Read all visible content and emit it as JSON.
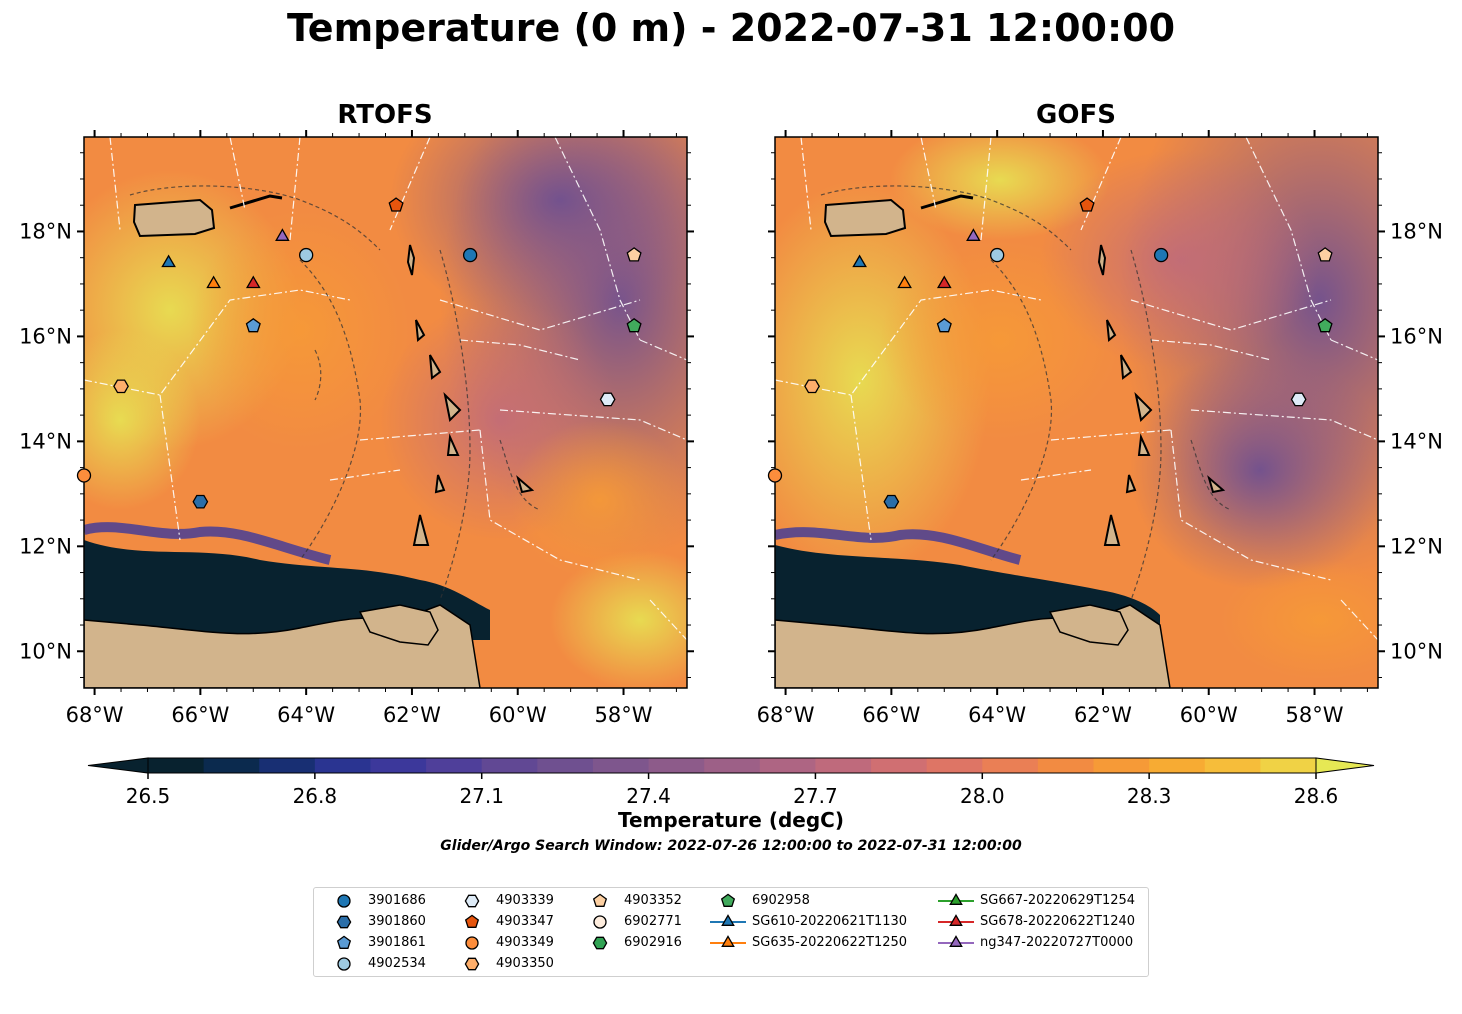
{
  "title": "Temperature (0 m) - 2022-07-31 12:00:00",
  "panels": [
    {
      "title": "RTOFS"
    },
    {
      "title": "GOFS"
    }
  ],
  "axes": {
    "lon_ticks": [
      "68°W",
      "66°W",
      "64°W",
      "62°W",
      "60°W",
      "58°W"
    ],
    "lat_ticks": [
      "18°N",
      "16°N",
      "14°N",
      "12°N",
      "10°N"
    ],
    "lon_range": [
      -68.2,
      -56.8
    ],
    "lat_range": [
      9.3,
      19.8
    ]
  },
  "colorbar": {
    "label": "Temperature (degC)",
    "ticks": [
      "26.5",
      "26.8",
      "27.1",
      "27.4",
      "27.7",
      "28.0",
      "28.3",
      "28.6"
    ],
    "range": [
      26.5,
      28.6
    ],
    "extend": "both",
    "colors": [
      "#08222f",
      "#0b2a4e",
      "#182f73",
      "#2a3491",
      "#3c389b",
      "#4f3f9a",
      "#614894",
      "#6f5090",
      "#7e568d",
      "#8d5b8a",
      "#9d6087",
      "#ae6583",
      "#bf6a7c",
      "#d06f72",
      "#de7565",
      "#ea7f55",
      "#f28b42",
      "#f69a37",
      "#f7ab33",
      "#f6bd3a",
      "#f0d245",
      "#e6e854"
    ]
  },
  "search_window": "Glider/Argo Search Window: 2022-07-26 12:00:00 to 2022-07-31 12:00:00",
  "legend": [
    {
      "label": "3901686",
      "marker": "circle",
      "color": "#1f77b4"
    },
    {
      "label": "3901860",
      "marker": "hexagon",
      "color": "#2b6ea8"
    },
    {
      "label": "3901861",
      "marker": "pentagon",
      "color": "#5a9bd4"
    },
    {
      "label": "4902534",
      "marker": "circle",
      "color": "#9ecae1"
    },
    {
      "label": "4903339",
      "marker": "hexagon",
      "color": "#deebf7"
    },
    {
      "label": "4903347",
      "marker": "pentagon",
      "color": "#e6550d"
    },
    {
      "label": "4903349",
      "marker": "circle",
      "color": "#fd8d3c"
    },
    {
      "label": "4903350",
      "marker": "hexagon",
      "color": "#fdae6b"
    },
    {
      "label": "4903352",
      "marker": "pentagon",
      "color": "#fdd0a2"
    },
    {
      "label": "6902771",
      "marker": "circle",
      "color": "#feedde"
    },
    {
      "label": "6902916",
      "marker": "hexagon",
      "color": "#31a354"
    },
    {
      "label": "6902958",
      "marker": "pentagon",
      "color": "#41ab5d"
    },
    {
      "label": "SG610-20220621T1130",
      "marker": "triangle",
      "color": "#1f77b4",
      "line": true
    },
    {
      "label": "SG635-20220622T1250",
      "marker": "triangle",
      "color": "#ff7f0e",
      "line": true
    },
    {
      "label": "SG667-20220629T1254",
      "marker": "triangle",
      "color": "#2ca02c",
      "line": true
    },
    {
      "label": "SG678-20220622T1240",
      "marker": "triangle",
      "color": "#d62728",
      "line": true
    },
    {
      "label": "ng347-20220727T0000",
      "marker": "triangle",
      "color": "#9467bd",
      "line": true
    }
  ],
  "observations": [
    {
      "id": "3901686",
      "lon": -60.9,
      "lat": 17.55
    },
    {
      "id": "3901860",
      "lon": -66.0,
      "lat": 12.85
    },
    {
      "id": "3901861",
      "lon": -65.0,
      "lat": 16.2
    },
    {
      "id": "4902534",
      "lon": -64.0,
      "lat": 17.55
    },
    {
      "id": "4903339",
      "lon": -58.3,
      "lat": 14.8
    },
    {
      "id": "4903347",
      "lon": -62.3,
      "lat": 18.5
    },
    {
      "id": "4903349",
      "lon": -68.2,
      "lat": 13.35
    },
    {
      "id": "4903350",
      "lon": -67.5,
      "lat": 15.05
    },
    {
      "id": "4903352",
      "lon": -57.8,
      "lat": 17.55
    },
    {
      "id": "6902958",
      "lon": -57.8,
      "lat": 16.2
    },
    {
      "id": "SG610-20220621T1130",
      "lon": -66.6,
      "lat": 17.4
    },
    {
      "id": "SG635-20220622T1250",
      "lon": -65.75,
      "lat": 17.0
    },
    {
      "id": "SG678-20220622T1240",
      "lon": -65.0,
      "lat": 17.0
    },
    {
      "id": "ng347-20220727T0000",
      "lon": -64.45,
      "lat": 17.9
    }
  ]
}
